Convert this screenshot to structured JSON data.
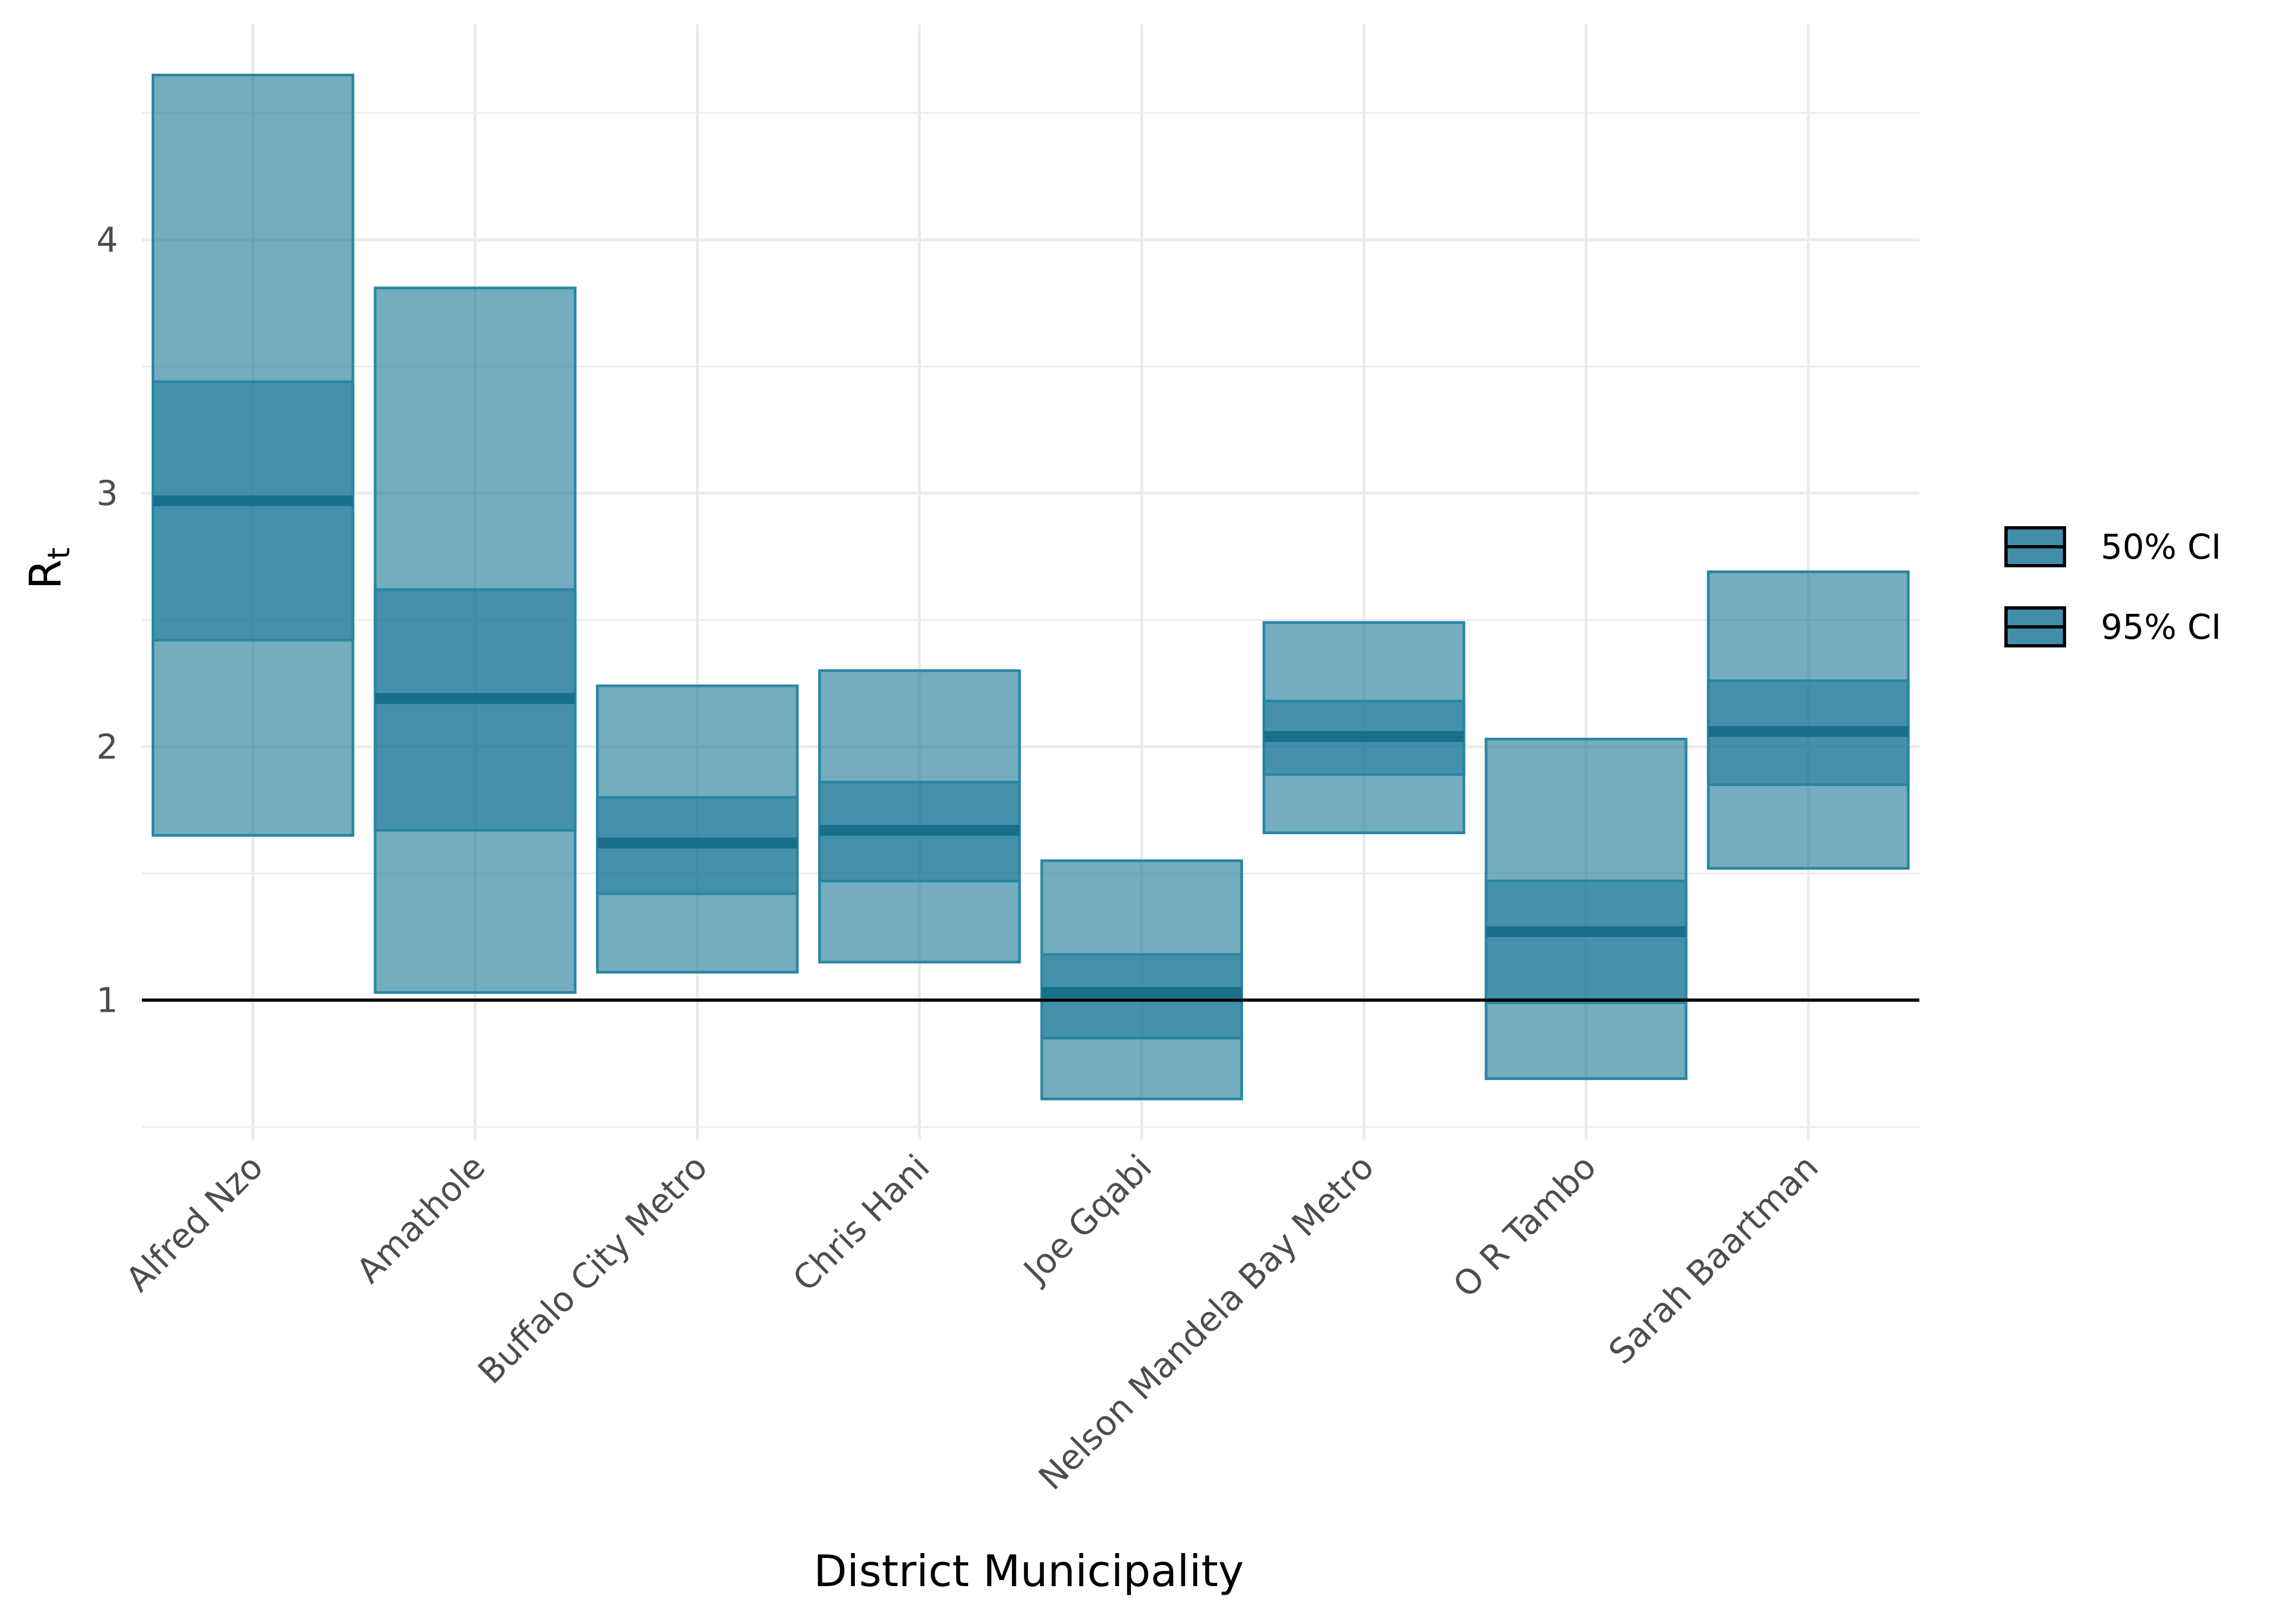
{
  "chart_data": {
    "type": "crossbar",
    "xlabel": "District Municipality",
    "ylabel": "R",
    "ylabel_subscript": "t",
    "categories": [
      "Alfred Nzo",
      "Amathole",
      "Buffalo City Metro",
      "Chris Hani",
      "Joe Gqabi",
      "Nelson Mandela Bay Metro",
      "O R Tambo",
      "Sarah Baartman"
    ],
    "series": [
      {
        "name": "95% CI",
        "lower": [
          1.65,
          1.03,
          1.11,
          1.15,
          0.61,
          1.66,
          0.69,
          1.52
        ],
        "upper": [
          4.65,
          3.81,
          2.24,
          2.3,
          1.55,
          2.49,
          2.03,
          2.69
        ]
      },
      {
        "name": "50% CI",
        "lower": [
          2.42,
          1.67,
          1.42,
          1.47,
          0.85,
          1.89,
          0.99,
          1.85
        ],
        "upper": [
          3.44,
          2.62,
          1.8,
          1.86,
          1.18,
          2.18,
          1.47,
          2.26
        ]
      }
    ],
    "median": [
      2.97,
      2.19,
      1.62,
      1.67,
      1.03,
      2.04,
      1.27,
      2.06
    ],
    "reference_line": 1,
    "ylim": [
      0.45,
      4.85
    ],
    "y_ticks": [
      1,
      2,
      3,
      4
    ],
    "y_minor_ticks": [
      0.5,
      1.5,
      2.5,
      3.5,
      4.5
    ],
    "grid": true,
    "legend_position": "right",
    "colors": {
      "fill": "#1f7a9a",
      "median": "#176f8c",
      "edge": "#2a86a1",
      "reference": "#000000"
    }
  }
}
